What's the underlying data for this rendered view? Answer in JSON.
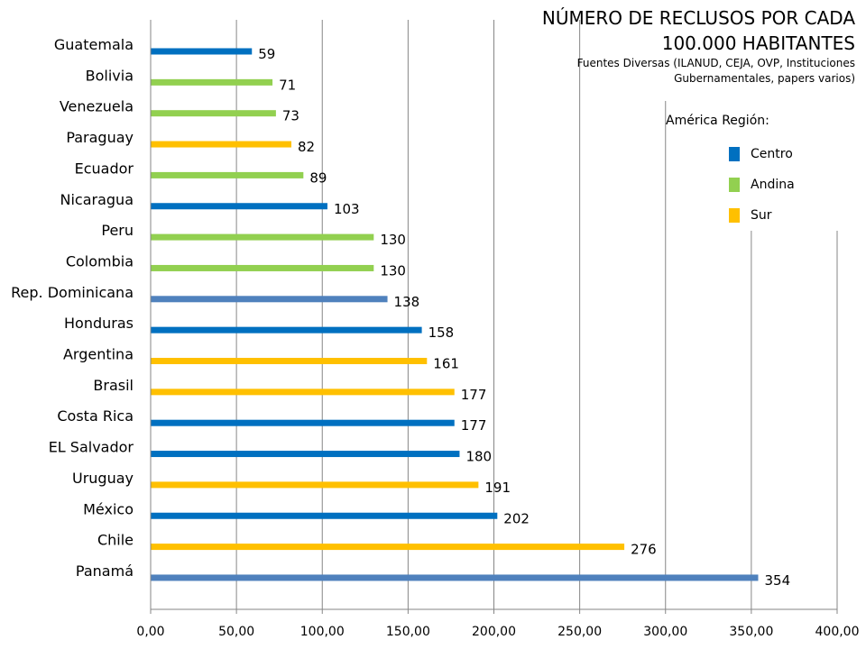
{
  "title": {
    "line1": "NÚMERO DE RECLUSOS POR CADA",
    "line2": "100.000 HABITANTES",
    "source_line1": "Fuentes Diversas (ILANUD, CEJA, OVP, Instituciones",
    "source_line2": "Gubernamentales, papers varios)"
  },
  "legend": {
    "title": "América Región:",
    "items": [
      {
        "label": "Centro",
        "color": "#0070C0"
      },
      {
        "label": "Andina",
        "color": "#92D050"
      },
      {
        "label": "Sur",
        "color": "#FFC000"
      }
    ]
  },
  "chart_data": {
    "type": "bar",
    "orientation": "horizontal",
    "categories": [
      "Guatemala",
      "Bolivia",
      "Venezuela",
      "Paraguay",
      "Ecuador",
      "Nicaragua",
      "Peru",
      "Colombia",
      "Rep. Dominicana",
      "Honduras",
      "Argentina",
      "Brasil",
      "Costa Rica",
      "EL Salvador",
      "Uruguay",
      "México",
      "Chile",
      "Panamá"
    ],
    "values": [
      59,
      71,
      73,
      82,
      89,
      103,
      130,
      130,
      138,
      158,
      161,
      177,
      177,
      180,
      191,
      202,
      276,
      354
    ],
    "data_labels": [
      "59",
      "71",
      "73",
      "82",
      "89",
      "103",
      "130",
      "130",
      "138",
      "158",
      "161",
      "177",
      "177",
      "180",
      "191",
      "202",
      "276",
      "354"
    ],
    "bar_colors": [
      "#0070C0",
      "#92D050",
      "#92D050",
      "#FFC000",
      "#92D050",
      "#0070C0",
      "#92D050",
      "#92D050",
      "#4F81BD",
      "#0070C0",
      "#FFC000",
      "#FFC000",
      "#0070C0",
      "#0070C0",
      "#FFC000",
      "#0070C0",
      "#FFC000",
      "#4F81BD"
    ],
    "xlim": [
      0,
      400
    ],
    "xticks": [
      0,
      50,
      100,
      150,
      200,
      250,
      300,
      350,
      400
    ],
    "xtick_labels": [
      "0,00",
      "50,00",
      "100,00",
      "150,00",
      "200,00",
      "250,00",
      "300,00",
      "350,00",
      "400,00"
    ],
    "grid": "vertical",
    "legend_position": "right"
  }
}
